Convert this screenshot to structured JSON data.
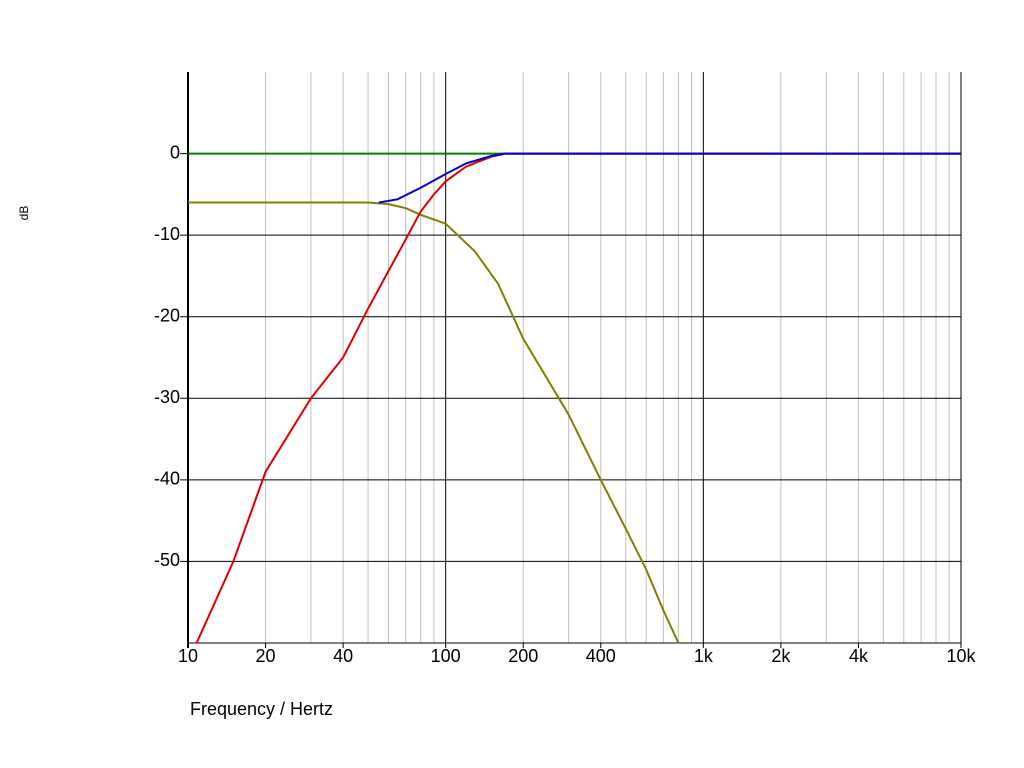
{
  "chart_data": {
    "type": "line",
    "xlabel": "Frequency / Hertz",
    "ylabel": "dB",
    "xscale": "log",
    "xlim": [
      10,
      10000
    ],
    "ylim": [
      -60,
      10
    ],
    "xticks": [
      10,
      20,
      40,
      100,
      200,
      400,
      {
        "value": 1000,
        "label": "1k"
      },
      {
        "value": 2000,
        "label": "2k"
      },
      {
        "value": 4000,
        "label": "4k"
      },
      {
        "value": 10000,
        "label": "10k"
      }
    ],
    "xminor_grid": [
      20,
      30,
      40,
      50,
      60,
      70,
      80,
      90,
      200,
      300,
      400,
      500,
      600,
      700,
      800,
      900,
      2000,
      3000,
      4000,
      5000,
      6000,
      7000,
      8000,
      9000
    ],
    "xmajor_grid": [
      100,
      1000
    ],
    "yticks": [
      0,
      -10,
      -20,
      -30,
      -40,
      -50
    ],
    "grid": true,
    "series": [
      {
        "color": "#008000",
        "x": [
          10,
          10000
        ],
        "values": [
          0,
          0
        ]
      },
      {
        "color": "#808000",
        "x": [
          10,
          50,
          60,
          70,
          80,
          100,
          130,
          160,
          200,
          300,
          400,
          500,
          600,
          700,
          800
        ],
        "values": [
          -6,
          -6,
          -6.2,
          -6.7,
          -7.5,
          -8.6,
          -12,
          -16,
          -22.7,
          -32,
          -40,
          -46,
          -51,
          -56,
          -60
        ]
      },
      {
        "color": "#e00000",
        "x": [
          10.8,
          15,
          20,
          30,
          40,
          50,
          60,
          70,
          80,
          90,
          100,
          120,
          150,
          170,
          10000
        ],
        "values": [
          -60,
          -50,
          -39,
          -30,
          -25,
          -19,
          -14.4,
          -10.5,
          -7.1,
          -5,
          -3.4,
          -1.6,
          -0.4,
          0,
          0
        ]
      },
      {
        "color": "#0000cc",
        "x": [
          55,
          65,
          80,
          100,
          120,
          150,
          170,
          10000
        ],
        "values": [
          -6,
          -5.6,
          -4.2,
          -2.5,
          -1.2,
          -0.3,
          0,
          0
        ]
      }
    ]
  }
}
